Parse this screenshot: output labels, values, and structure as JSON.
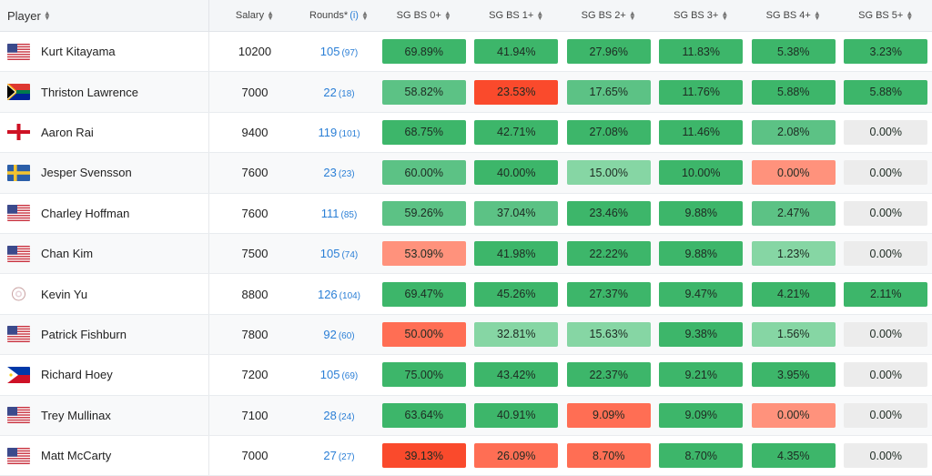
{
  "headers": {
    "player": "Player",
    "salary": "Salary",
    "rounds": "Rounds*",
    "rounds_info": "(i)",
    "sg": [
      "SG BS 0+",
      "SG BS 1+",
      "SG BS 2+",
      "SG BS 3+",
      "SG BS 4+",
      "SG BS 5+"
    ]
  },
  "colors": {
    "green_strong": "#3db66a",
    "green_mid": "#5cc285",
    "green_light": "#86d6a4",
    "red_strong": "#fa4a2c",
    "red_mid": "#ff6e54",
    "red_light": "#ff927c",
    "neutral": "#ececec"
  },
  "rows": [
    {
      "name": "Kurt Kitayama",
      "flag": "us-flag-icon",
      "salary": "10200",
      "rounds": "105",
      "rounds_sub": "(97)",
      "sg": [
        [
          "69.89%",
          "green_strong"
        ],
        [
          "41.94%",
          "green_strong"
        ],
        [
          "27.96%",
          "green_strong"
        ],
        [
          "11.83%",
          "green_strong"
        ],
        [
          "5.38%",
          "green_strong"
        ],
        [
          "3.23%",
          "green_strong"
        ]
      ]
    },
    {
      "name": "Thriston Lawrence",
      "flag": "za-flag-icon",
      "salary": "7000",
      "rounds": "22",
      "rounds_sub": "(18)",
      "sg": [
        [
          "58.82%",
          "green_mid"
        ],
        [
          "23.53%",
          "red_strong"
        ],
        [
          "17.65%",
          "green_mid"
        ],
        [
          "11.76%",
          "green_strong"
        ],
        [
          "5.88%",
          "green_strong"
        ],
        [
          "5.88%",
          "green_strong"
        ]
      ]
    },
    {
      "name": "Aaron Rai",
      "flag": "eng-flag-icon",
      "salary": "9400",
      "rounds": "119",
      "rounds_sub": "(101)",
      "sg": [
        [
          "68.75%",
          "green_strong"
        ],
        [
          "42.71%",
          "green_strong"
        ],
        [
          "27.08%",
          "green_strong"
        ],
        [
          "11.46%",
          "green_strong"
        ],
        [
          "2.08%",
          "green_mid"
        ],
        [
          "0.00%",
          "neutral"
        ]
      ]
    },
    {
      "name": "Jesper Svensson",
      "flag": "se-flag-icon",
      "salary": "7600",
      "rounds": "23",
      "rounds_sub": "(23)",
      "sg": [
        [
          "60.00%",
          "green_mid"
        ],
        [
          "40.00%",
          "green_strong"
        ],
        [
          "15.00%",
          "green_light"
        ],
        [
          "10.00%",
          "green_strong"
        ],
        [
          "0.00%",
          "red_light"
        ],
        [
          "0.00%",
          "neutral"
        ]
      ]
    },
    {
      "name": "Charley Hoffman",
      "flag": "us-flag-icon",
      "salary": "7600",
      "rounds": "111",
      "rounds_sub": "(85)",
      "sg": [
        [
          "59.26%",
          "green_mid"
        ],
        [
          "37.04%",
          "green_mid"
        ],
        [
          "23.46%",
          "green_strong"
        ],
        [
          "9.88%",
          "green_strong"
        ],
        [
          "2.47%",
          "green_mid"
        ],
        [
          "0.00%",
          "neutral"
        ]
      ]
    },
    {
      "name": "Chan Kim",
      "flag": "us-flag-icon",
      "salary": "7500",
      "rounds": "105",
      "rounds_sub": "(74)",
      "sg": [
        [
          "53.09%",
          "red_light"
        ],
        [
          "41.98%",
          "green_strong"
        ],
        [
          "22.22%",
          "green_strong"
        ],
        [
          "9.88%",
          "green_strong"
        ],
        [
          "1.23%",
          "green_light"
        ],
        [
          "0.00%",
          "neutral"
        ]
      ]
    },
    {
      "name": "Kevin Yu",
      "flag": "tw-flag-icon",
      "salary": "8800",
      "rounds": "126",
      "rounds_sub": "(104)",
      "sg": [
        [
          "69.47%",
          "green_strong"
        ],
        [
          "45.26%",
          "green_strong"
        ],
        [
          "27.37%",
          "green_strong"
        ],
        [
          "9.47%",
          "green_strong"
        ],
        [
          "4.21%",
          "green_strong"
        ],
        [
          "2.11%",
          "green_strong"
        ]
      ]
    },
    {
      "name": "Patrick Fishburn",
      "flag": "us-flag-icon",
      "salary": "7800",
      "rounds": "92",
      "rounds_sub": "(60)",
      "sg": [
        [
          "50.00%",
          "red_mid"
        ],
        [
          "32.81%",
          "green_light"
        ],
        [
          "15.63%",
          "green_light"
        ],
        [
          "9.38%",
          "green_strong"
        ],
        [
          "1.56%",
          "green_light"
        ],
        [
          "0.00%",
          "neutral"
        ]
      ]
    },
    {
      "name": "Richard Hoey",
      "flag": "ph-flag-icon",
      "salary": "7200",
      "rounds": "105",
      "rounds_sub": "(69)",
      "sg": [
        [
          "75.00%",
          "green_strong"
        ],
        [
          "43.42%",
          "green_strong"
        ],
        [
          "22.37%",
          "green_strong"
        ],
        [
          "9.21%",
          "green_strong"
        ],
        [
          "3.95%",
          "green_strong"
        ],
        [
          "0.00%",
          "neutral"
        ]
      ]
    },
    {
      "name": "Trey Mullinax",
      "flag": "us-flag-icon",
      "salary": "7100",
      "rounds": "28",
      "rounds_sub": "(24)",
      "sg": [
        [
          "63.64%",
          "green_strong"
        ],
        [
          "40.91%",
          "green_strong"
        ],
        [
          "9.09%",
          "red_mid"
        ],
        [
          "9.09%",
          "green_strong"
        ],
        [
          "0.00%",
          "red_light"
        ],
        [
          "0.00%",
          "neutral"
        ]
      ]
    },
    {
      "name": "Matt McCarty",
      "flag": "us-flag-icon",
      "salary": "7000",
      "rounds": "27",
      "rounds_sub": "(27)",
      "sg": [
        [
          "39.13%",
          "red_strong"
        ],
        [
          "26.09%",
          "red_mid"
        ],
        [
          "8.70%",
          "red_mid"
        ],
        [
          "8.70%",
          "green_strong"
        ],
        [
          "4.35%",
          "green_strong"
        ],
        [
          "0.00%",
          "neutral"
        ]
      ]
    }
  ]
}
